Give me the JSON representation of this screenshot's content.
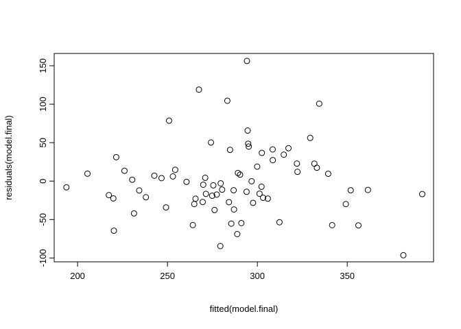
{
  "chart_data": {
    "type": "scatter",
    "title": "",
    "xlabel": "fitted(model.final)",
    "ylabel": "residuals(model.final)",
    "xlim": [
      187,
      398
    ],
    "ylim": [
      -105,
      166
    ],
    "xticks": [
      200,
      250,
      300,
      350
    ],
    "yticks": [
      -100,
      -50,
      0,
      50,
      100,
      150
    ],
    "grid": false,
    "legend": "none",
    "marker": "open-circle",
    "color": "#000000",
    "series": [
      {
        "points": [
          [
            193.8,
            -8.1
          ],
          [
            205.5,
            9.7
          ],
          [
            217.4,
            -18.2
          ],
          [
            219.9,
            -22.5
          ],
          [
            220.2,
            -64.5
          ],
          [
            221.5,
            31.1
          ],
          [
            226.1,
            13.4
          ],
          [
            230.4,
            1.8
          ],
          [
            231.4,
            -42.0
          ],
          [
            234.3,
            -12.2
          ],
          [
            238.0,
            -21.0
          ],
          [
            242.7,
            7.0
          ],
          [
            246.7,
            3.9
          ],
          [
            249.2,
            -34.2
          ],
          [
            250.9,
            78.6
          ],
          [
            253.0,
            6.1
          ],
          [
            254.3,
            14.7
          ],
          [
            260.6,
            -1.0
          ],
          [
            264.1,
            -57.2
          ],
          [
            264.9,
            -29.9
          ],
          [
            265.6,
            -22.9
          ],
          [
            267.5,
            119.0
          ],
          [
            269.6,
            -27.2
          ],
          [
            269.9,
            -4.7
          ],
          [
            271.0,
            4.3
          ],
          [
            271.4,
            -16.6
          ],
          [
            274.2,
            50.2
          ],
          [
            274.9,
            -19.0
          ],
          [
            275.5,
            -5.5
          ],
          [
            276.2,
            -37.6
          ],
          [
            277.4,
            -17.5
          ],
          [
            279.4,
            -84.5
          ],
          [
            279.6,
            -2.9
          ],
          [
            280.4,
            -11.1
          ],
          [
            283.3,
            104.5
          ],
          [
            284.2,
            -27.4
          ],
          [
            284.8,
            40.6
          ],
          [
            285.5,
            -55.3
          ],
          [
            286.8,
            -11.9
          ],
          [
            287.0,
            -36.9
          ],
          [
            288.8,
            -68.9
          ],
          [
            289.2,
            10.6
          ],
          [
            290.4,
            8.4
          ],
          [
            291.1,
            -54.6
          ],
          [
            294.0,
            -13.9
          ],
          [
            294.2,
            156.3
          ],
          [
            294.6,
            65.7
          ],
          [
            294.9,
            48.6
          ],
          [
            295.2,
            44.9
          ],
          [
            296.8,
            -0.2
          ],
          [
            297.6,
            -28.3
          ],
          [
            299.9,
            18.8
          ],
          [
            301.2,
            -16.4
          ],
          [
            302.3,
            -7.3
          ],
          [
            302.5,
            36.7
          ],
          [
            303.2,
            -21.7
          ],
          [
            305.8,
            -22.8
          ],
          [
            308.5,
            41.2
          ],
          [
            308.6,
            27.3
          ],
          [
            312.3,
            -53.5
          ],
          [
            314.7,
            34.4
          ],
          [
            317.3,
            42.8
          ],
          [
            322.0,
            22.8
          ],
          [
            322.3,
            12.1
          ],
          [
            329.4,
            56.2
          ],
          [
            331.7,
            22.7
          ],
          [
            333.1,
            17.4
          ],
          [
            334.4,
            100.7
          ],
          [
            339.4,
            9.6
          ],
          [
            341.6,
            -57.3
          ],
          [
            349.2,
            -29.9
          ],
          [
            351.9,
            -11.9
          ],
          [
            356.2,
            -57.6
          ],
          [
            361.5,
            -11.5
          ],
          [
            381.2,
            -96.4
          ],
          [
            391.7,
            -16.9
          ]
        ]
      }
    ]
  }
}
